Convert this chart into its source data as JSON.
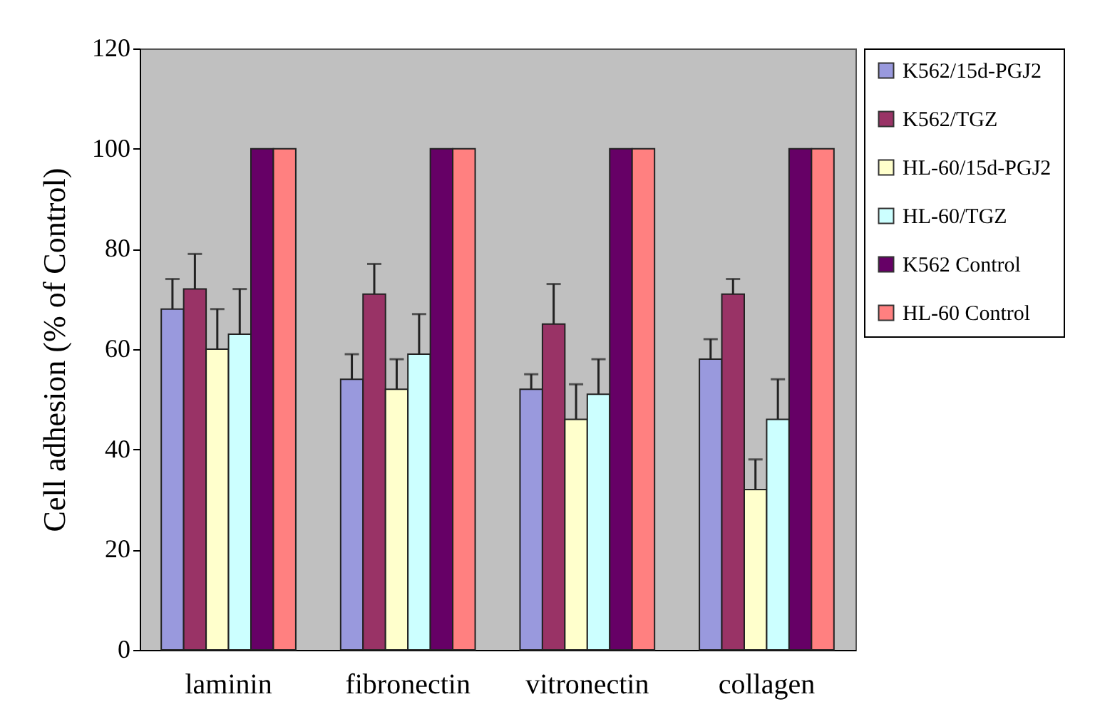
{
  "chart_data": {
    "type": "bar",
    "ylabel": "Cell adhesion (% of Control)",
    "categories": [
      "laminin",
      "fibronectin",
      "vitronectin",
      "collagen"
    ],
    "ylim": [
      0,
      120
    ],
    "yticks": [
      0,
      20,
      40,
      60,
      80,
      100,
      120
    ],
    "grid": false,
    "legend": "top right",
    "series": [
      {
        "name": "K562/15d-PGJ2",
        "color": "#9999dd",
        "values": [
          68,
          54,
          52,
          58
        ],
        "errors": [
          [
            68,
            74
          ],
          [
            54,
            59
          ],
          [
            52,
            55
          ],
          [
            58,
            62
          ]
        ]
      },
      {
        "name": "K562/TGZ",
        "color": "#993366",
        "values": [
          72,
          71,
          65,
          71
        ],
        "errors": [
          [
            72,
            79
          ],
          [
            71,
            77
          ],
          [
            65,
            73
          ],
          [
            71,
            74
          ]
        ]
      },
      {
        "name": "HL-60/15d-PGJ2",
        "color": "#ffffcc",
        "values": [
          60,
          52,
          46,
          32
        ],
        "errors": [
          [
            60,
            68
          ],
          [
            52,
            58
          ],
          [
            46,
            53
          ],
          [
            32,
            38
          ]
        ]
      },
      {
        "name": "HL-60/TGZ",
        "color": "#ccffff",
        "values": [
          63,
          59,
          51,
          46
        ],
        "errors": [
          [
            63,
            72
          ],
          [
            59,
            67
          ],
          [
            51,
            58
          ],
          [
            46,
            54
          ]
        ]
      },
      {
        "name": "K562 Control",
        "color": "#660066",
        "values": [
          100,
          100,
          100,
          100
        ]
      },
      {
        "name": "HL-60 Control",
        "color": "#ff8080",
        "values": [
          100,
          100,
          100,
          100
        ]
      }
    ]
  }
}
